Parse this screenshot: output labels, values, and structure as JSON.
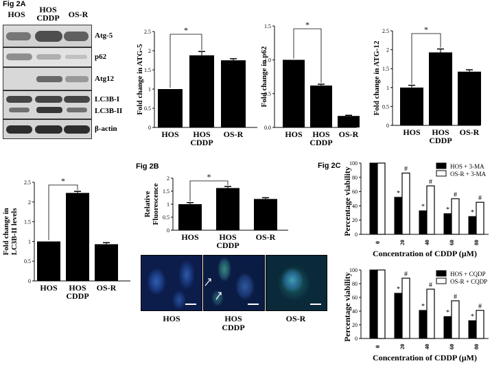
{
  "figure_labels": {
    "fig2a": "Fig  2A",
    "fig2b": "Fig  2B",
    "fig2c": "Fig  2C"
  },
  "blot": {
    "col_headers": [
      "HOS",
      "HOS\nCDDP",
      "OS-R"
    ],
    "bands": [
      "Atg-5",
      "p62",
      "Atg12",
      "LC3B-I",
      "LC3B-II",
      "β-actin"
    ]
  },
  "micrographs": {
    "captions": [
      "HOS",
      "HOS\nCDDP",
      "OS-R"
    ]
  },
  "chart_data": [
    {
      "id": "atg5",
      "type": "bar",
      "categories": [
        "HOS",
        "HOS\nCDDP",
        "OS-R"
      ],
      "values": [
        1.0,
        1.88,
        1.75
      ],
      "errors": [
        0,
        0.1,
        0.04
      ],
      "ylabel": "Fold change in ATG-5",
      "ylim": [
        0,
        2.5
      ],
      "yticks": [
        "0",
        "0.5",
        "1",
        "1.5",
        "2",
        "2.5"
      ],
      "significance": "*"
    },
    {
      "id": "p62",
      "type": "bar",
      "categories": [
        "HOS",
        "HOS\nCDDP",
        "OS-R"
      ],
      "values": [
        1.0,
        0.62,
        0.17
      ],
      "errors": [
        0,
        0.02,
        0.01
      ],
      "ylabel": "Fold change in p62",
      "ylim": [
        0,
        1.5
      ],
      "yticks": [
        "0.0",
        "0.5",
        "1.0",
        "1.5"
      ],
      "significance": "*"
    },
    {
      "id": "atg12",
      "type": "bar",
      "categories": [
        "HOS",
        "HOS\nCDDP",
        "OS-R"
      ],
      "values": [
        1.0,
        1.93,
        1.42
      ],
      "errors": [
        0.06,
        0.09,
        0.05
      ],
      "ylabel": "Fold change in ATG-12",
      "ylim": [
        0,
        2.5
      ],
      "yticks": [
        "0",
        "0.5",
        "1",
        "1.5",
        "2",
        "2.5"
      ],
      "significance": "*"
    },
    {
      "id": "lc3b",
      "type": "bar",
      "categories": [
        "HOS",
        "HOS\nCDDP",
        "OS-R"
      ],
      "values": [
        1.0,
        2.23,
        0.93
      ],
      "errors": [
        0,
        0.04,
        0.04
      ],
      "ylabel": "Fold change in\nLC3B-II levels",
      "ylim": [
        0,
        2.5
      ],
      "yticks": [
        "0",
        "0.5",
        "1",
        "1.5",
        "2",
        "2.5"
      ],
      "significance": "*"
    },
    {
      "id": "fluor",
      "type": "bar",
      "categories": [
        "HOS",
        "HOS\nCDDP",
        "OS-R"
      ],
      "values": [
        1.0,
        1.62,
        1.2
      ],
      "errors": [
        0.06,
        0.06,
        0.05
      ],
      "ylabel": "Relative\nFluorescence",
      "ylim": [
        0,
        2
      ],
      "yticks": [
        "0",
        "0.5",
        "1",
        "1.5",
        "2"
      ],
      "significance": "*"
    },
    {
      "id": "viab1",
      "type": "bar",
      "categories": [
        "0",
        "20",
        "40",
        "60",
        "80"
      ],
      "series": [
        {
          "name": "HOS + 3-MA",
          "values": [
            100,
            52,
            33,
            29,
            25
          ]
        },
        {
          "name": "OS-R + 3-MA",
          "values": [
            100,
            86,
            68,
            50,
            45
          ]
        }
      ],
      "marks": {
        "s1": [
          "",
          "*",
          "*",
          "*",
          "*"
        ],
        "s2": [
          "",
          "#",
          "#",
          "#",
          "#"
        ]
      },
      "xlabel": "Concentration of CDDP (µM)",
      "ylabel": "Percentage viability",
      "ylim": [
        0,
        100
      ],
      "yticks": [
        "0",
        "20",
        "40",
        "60",
        "80",
        "100"
      ],
      "legend": "top-right"
    },
    {
      "id": "viab2",
      "type": "bar",
      "categories": [
        "0",
        "20",
        "40",
        "60",
        "80"
      ],
      "series": [
        {
          "name": "HOS + CQDP",
          "values": [
            100,
            66,
            41,
            32,
            26
          ]
        },
        {
          "name": "OS-R + CQDP",
          "values": [
            100,
            88,
            72,
            55,
            41
          ]
        }
      ],
      "marks": {
        "s1": [
          "",
          "*",
          "*",
          "*",
          "*"
        ],
        "s2": [
          "",
          "#",
          "#",
          "#",
          "#"
        ]
      },
      "xlabel": "Concentration of CDDP (µM)",
      "ylabel": "Percentage viability",
      "ylim": [
        0,
        100
      ],
      "yticks": [
        "0",
        "20",
        "40",
        "60",
        "80",
        "100"
      ],
      "legend": "top-right"
    }
  ]
}
